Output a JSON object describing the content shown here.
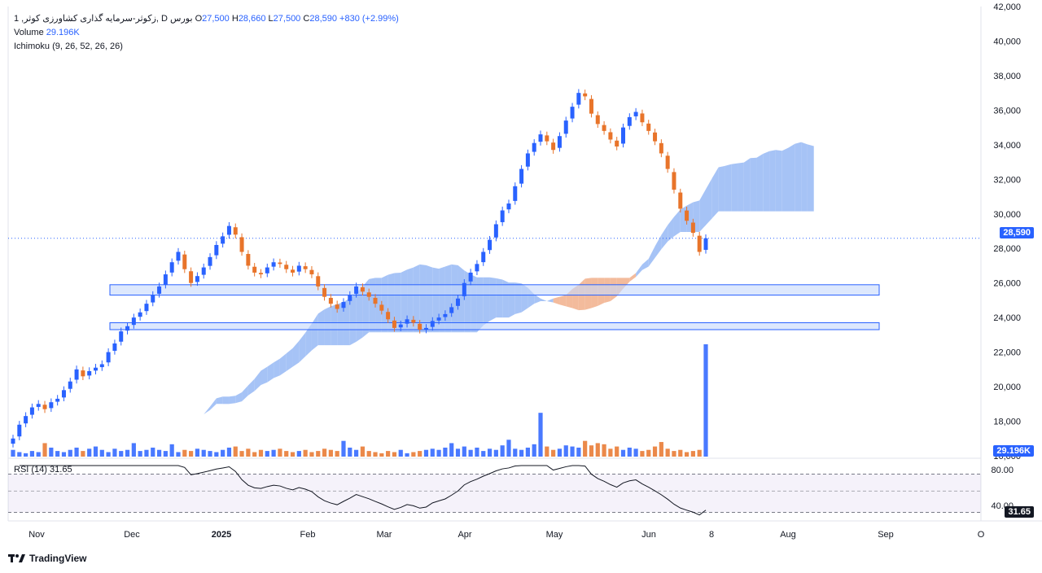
{
  "header": {
    "symbol_line": "1 ,زکوثر-سرمایه گذاری کشاورزی کوثر, D بورس",
    "o_label": "O",
    "o_value": "27,500",
    "h_label": "H",
    "h_value": "28,660",
    "l_label": "L",
    "l_value": "27,500",
    "c_label": "C",
    "c_value": "28,590",
    "change": "+830 (+2.99%)",
    "volume_label": "Volume",
    "volume_value": "29.196K",
    "ichimoku_label": "Ichimoku (9, 26, 52, 26, 26)"
  },
  "rsi": {
    "label": "RSI (14)",
    "value": "31.65",
    "levels": [
      "80.00",
      "40.00"
    ]
  },
  "price_tag": "28,590",
  "volume_tag": "29.196K",
  "rsi_tag": "31.65",
  "brand": "TradingView",
  "colors": {
    "up": "#2962ff",
    "down": "#e8742a",
    "cloud_up": "#9cbcf5",
    "cloud_down": "#f2b491",
    "rect": "#c7d8fb",
    "rect_edge": "#2962ff"
  },
  "chart_data": {
    "type": "candlestick",
    "y_axis": {
      "min": 16000,
      "max": 42000,
      "ticks": [
        42000,
        40000,
        38000,
        36000,
        34000,
        32000,
        30000,
        28000,
        26000,
        24000,
        22000,
        20000,
        18000,
        16000
      ],
      "tick_labels": [
        "42,000",
        "40,000",
        "38,000",
        "36,000",
        "34,000",
        "32,000",
        "30,000",
        "28,000",
        "26,000",
        "24,000",
        "22,000",
        "20,000",
        "18,000",
        "16,000"
      ]
    },
    "x_axis": {
      "labels": [
        "Nov",
        "Dec",
        "2025",
        "Feb",
        "Mar",
        "Apr",
        "May",
        "Jun",
        "8",
        "Aug",
        "Sep",
        "O"
      ]
    },
    "last_price": 28590,
    "support_zones": [
      [
        25300,
        25900
      ],
      [
        23300,
        23700
      ]
    ],
    "close_series": [
      17000,
      17800,
      18300,
      18800,
      19000,
      18700,
      19100,
      19300,
      19800,
      20300,
      21000,
      20600,
      20900,
      21100,
      21300,
      22000,
      22500,
      23200,
      23500,
      24000,
      24300,
      24800,
      25300,
      25800,
      26500,
      27200,
      27800,
      26800,
      26000,
      26400,
      26900,
      27500,
      28200,
      28700,
      29300,
      28800,
      27800,
      27000,
      26600,
      26500,
      26900,
      27200,
      27100,
      26800,
      26600,
      27000,
      26800,
      26500,
      25800,
      25200,
      24800,
      24500,
      24900,
      25300,
      25800,
      25500,
      25200,
      24800,
      24400,
      23900,
      23400,
      23600,
      23900,
      23700,
      23300,
      23400,
      23800,
      24000,
      24200,
      24600,
      25100,
      26000,
      26600,
      27100,
      27800,
      28500,
      29400,
      30200,
      30600,
      31600,
      32600,
      33500,
      34100,
      34600,
      34200,
      33700,
      34500,
      35400,
      36200,
      37000,
      36800,
      35800,
      35200,
      34800,
      34300,
      33900,
      35000,
      35600,
      35900,
      35300,
      34800,
      34200,
      33500,
      32600,
      31400,
      30300,
      29600,
      28900,
      27800,
      28590
    ],
    "volume_relative": [
      0.06,
      0.04,
      0.03,
      0.05,
      0.04,
      0.12,
      0.08,
      0.05,
      0.04,
      0.06,
      0.08,
      0.05,
      0.07,
      0.09,
      0.06,
      0.04,
      0.07,
      0.05,
      0.06,
      0.12,
      0.05,
      0.06,
      0.08,
      0.06,
      0.05,
      0.11,
      0.04,
      0.06,
      0.05,
      0.07,
      0.06,
      0.05,
      0.04,
      0.06,
      0.08,
      0.09,
      0.05,
      0.07,
      0.04,
      0.06,
      0.05,
      0.06,
      0.07,
      0.05,
      0.04,
      0.05,
      0.06,
      0.04,
      0.05,
      0.07,
      0.06,
      0.05,
      0.14,
      0.08,
      0.06,
      0.09,
      0.05,
      0.04,
      0.03,
      0.05,
      0.04,
      0.06,
      0.03,
      0.04,
      0.05,
      0.06,
      0.07,
      0.06,
      0.08,
      0.12,
      0.07,
      0.09,
      0.06,
      0.08,
      0.05,
      0.07,
      0.06,
      0.1,
      0.15,
      0.07,
      0.06,
      0.08,
      0.11,
      0.39,
      0.09,
      0.06,
      0.07,
      0.1,
      0.09,
      0.08,
      0.14,
      0.1,
      0.12,
      0.11,
      0.07,
      0.09,
      0.06,
      0.08,
      0.07,
      0.05,
      0.06,
      0.09,
      0.13,
      0.07,
      0.05,
      0.06,
      0.04,
      0.05,
      0.06,
      1.0
    ]
  }
}
